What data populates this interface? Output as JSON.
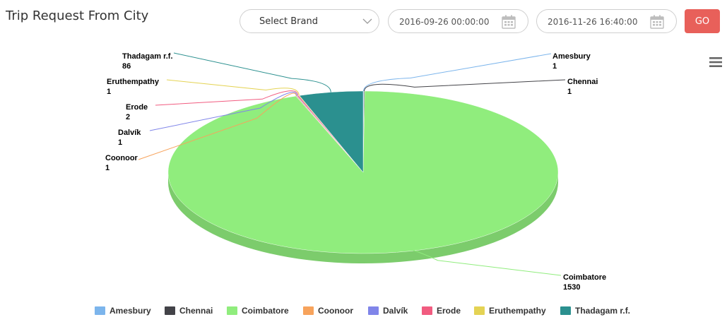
{
  "header": {
    "title": "Trip Request From City",
    "brand_select": {
      "selected": "Select Brand"
    },
    "start_date": "2016-09-26 00:00:00",
    "end_date": "2016-11-26 16:40:00",
    "go_label": "GO"
  },
  "chart_data": {
    "type": "pie",
    "title": "",
    "three_d": true,
    "legend_position": "bottom",
    "categories": [
      "Amesbury",
      "Chennai",
      "Coimbatore",
      "Coonoor",
      "Dalvík",
      "Erode",
      "Eruthempathy",
      "Thadagam r.f."
    ],
    "values": [
      1,
      1,
      1530,
      1,
      1,
      2,
      1,
      86
    ],
    "colors": [
      "#7cb5ec",
      "#434348",
      "#90ed7d",
      "#f7a35c",
      "#8085e9",
      "#f15c80",
      "#e4d354",
      "#2b908f"
    ],
    "data_labels": [
      {
        "name": "Amesbury",
        "value": "1"
      },
      {
        "name": "Chennai",
        "value": "1"
      },
      {
        "name": "Coimbatore",
        "value": "1530"
      },
      {
        "name": "Coonoor",
        "value": "1"
      },
      {
        "name": "Dalvík",
        "value": "1"
      },
      {
        "name": "Erode",
        "value": "2"
      },
      {
        "name": "Eruthempathy",
        "value": "1"
      },
      {
        "name": "Thadagam r.f.",
        "value": "86"
      }
    ]
  }
}
